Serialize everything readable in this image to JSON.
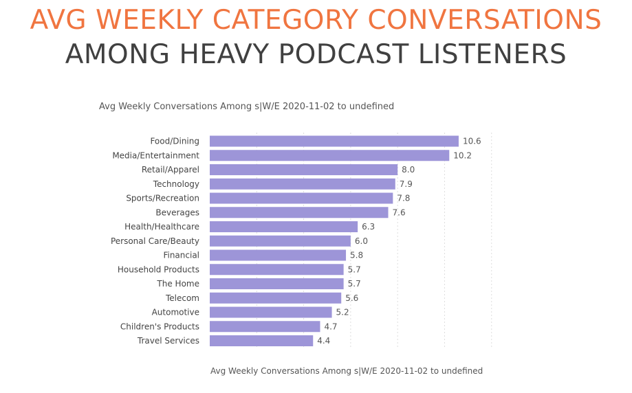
{
  "title_line1": "AVG WEEKLY CATEGORY CONVERSATIONS",
  "title_line2": "AMONG HEAVY PODCAST LISTENERS",
  "colors": {
    "title_accent": "#f07540",
    "title_dark": "#404040",
    "bar": "#9d95d8",
    "grid": "#dddddd"
  },
  "chart_data": {
    "type": "bar",
    "orientation": "horizontal",
    "subtitle": "Avg Weekly Conversations Among s|W/E 2020-11-02 to undefined",
    "footer": "Avg Weekly Conversations Among s|W/E 2020-11-02 to undefined",
    "categories": [
      "Food/Dining",
      "Media/Entertainment",
      "Retail/Apparel",
      "Technology",
      "Sports/Recreation",
      "Beverages",
      "Health/Healthcare",
      "Personal Care/Beauty",
      "Financial",
      "Household Products",
      "The Home",
      "Telecom",
      "Automotive",
      "Children's Products",
      "Travel Services"
    ],
    "values": [
      10.6,
      10.2,
      8.0,
      7.9,
      7.8,
      7.6,
      6.3,
      6.0,
      5.8,
      5.7,
      5.7,
      5.6,
      5.2,
      4.7,
      4.4
    ],
    "value_labels": [
      "10.6",
      "10.2",
      "8.0",
      "7.9",
      "7.8",
      "7.6",
      "6.3",
      "6.0",
      "5.8",
      "5.7",
      "5.7",
      "5.6",
      "5.2",
      "4.7",
      "4.4"
    ],
    "xlim": [
      0,
      12.3
    ],
    "grid": true
  }
}
